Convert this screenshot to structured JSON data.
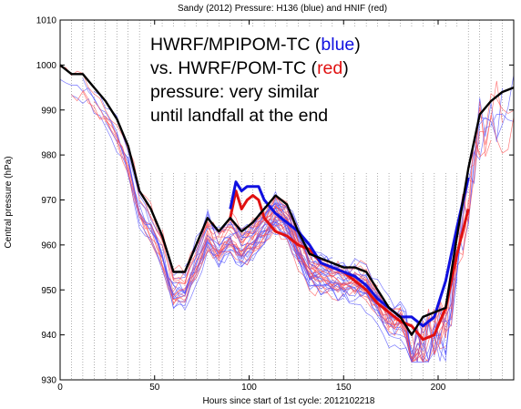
{
  "chart_data": {
    "type": "line",
    "title": "Sandy (2012) Pressure: H136 (blue) and HNIF (red)",
    "xlabel": "Hours since start of 1st cycle: 2012102218",
    "ylabel": "Central pressure (hPa)",
    "xlim": [
      0,
      240
    ],
    "ylim": [
      930,
      1010
    ],
    "xticks": [
      0,
      50,
      100,
      150,
      200
    ],
    "yticks": [
      930,
      940,
      950,
      960,
      970,
      980,
      990,
      1000,
      1010
    ],
    "grid": "vertical dotted lines every 6 h",
    "annotation": {
      "line1_a": "HWRF/MPIPOM-TC (",
      "line1_b": "blue",
      "line1_c": ")",
      "line2_a": "vs. HWRF/POM-TC (",
      "line2_b": "red",
      "line2_c": ")",
      "line3": "pressure: very similar",
      "line4": "until landfall at the end"
    },
    "colors": {
      "observed": "#000000",
      "h136": "#1010e0",
      "hnif": "#e01010"
    },
    "series": [
      {
        "style": "observed-thick-black",
        "x": [
          0,
          6,
          12,
          18,
          24,
          30,
          36,
          42,
          48,
          54,
          60,
          66,
          72,
          78,
          84,
          90,
          96,
          102,
          108,
          114,
          120,
          126,
          132,
          138,
          144,
          150,
          156,
          162,
          168,
          174,
          180,
          186,
          192,
          198,
          204,
          210,
          216,
          222,
          228,
          234,
          240
        ],
        "y": [
          1000,
          998,
          998,
          995,
          992,
          988,
          982,
          972,
          968,
          962,
          954,
          954,
          960,
          966,
          963,
          966,
          963,
          965,
          968,
          971,
          969,
          963,
          958,
          957,
          956,
          955,
          955,
          954,
          950,
          946,
          944,
          940,
          944,
          945,
          946,
          962,
          977,
          989,
          992,
          994,
          995
        ]
      },
      {
        "style": "h136-thick-blue",
        "x": [
          90,
          93,
          96,
          99,
          102,
          105,
          108,
          114,
          120,
          126,
          132,
          138,
          144,
          150,
          156,
          162,
          168,
          174,
          180,
          186,
          192,
          198,
          204,
          210,
          216
        ],
        "y": [
          968,
          974,
          972,
          973,
          973,
          973,
          970,
          967,
          965,
          963,
          960,
          956,
          955,
          954,
          953,
          951,
          948,
          946,
          944,
          944,
          942,
          944,
          952,
          964,
          975
        ]
      },
      {
        "style": "hnif-thick-red",
        "x": [
          90,
          93,
          96,
          99,
          102,
          105,
          108,
          114,
          120,
          126,
          132,
          138,
          144,
          150,
          156,
          162,
          168,
          174,
          180,
          186,
          192,
          198,
          204,
          210,
          216
        ],
        "y": [
          966,
          972,
          968,
          970,
          971,
          970,
          966,
          963,
          962,
          960,
          959,
          956,
          955,
          954,
          952,
          950,
          947,
          945,
          943,
          942,
          939,
          940,
          946,
          958,
          968
        ]
      }
    ]
  }
}
